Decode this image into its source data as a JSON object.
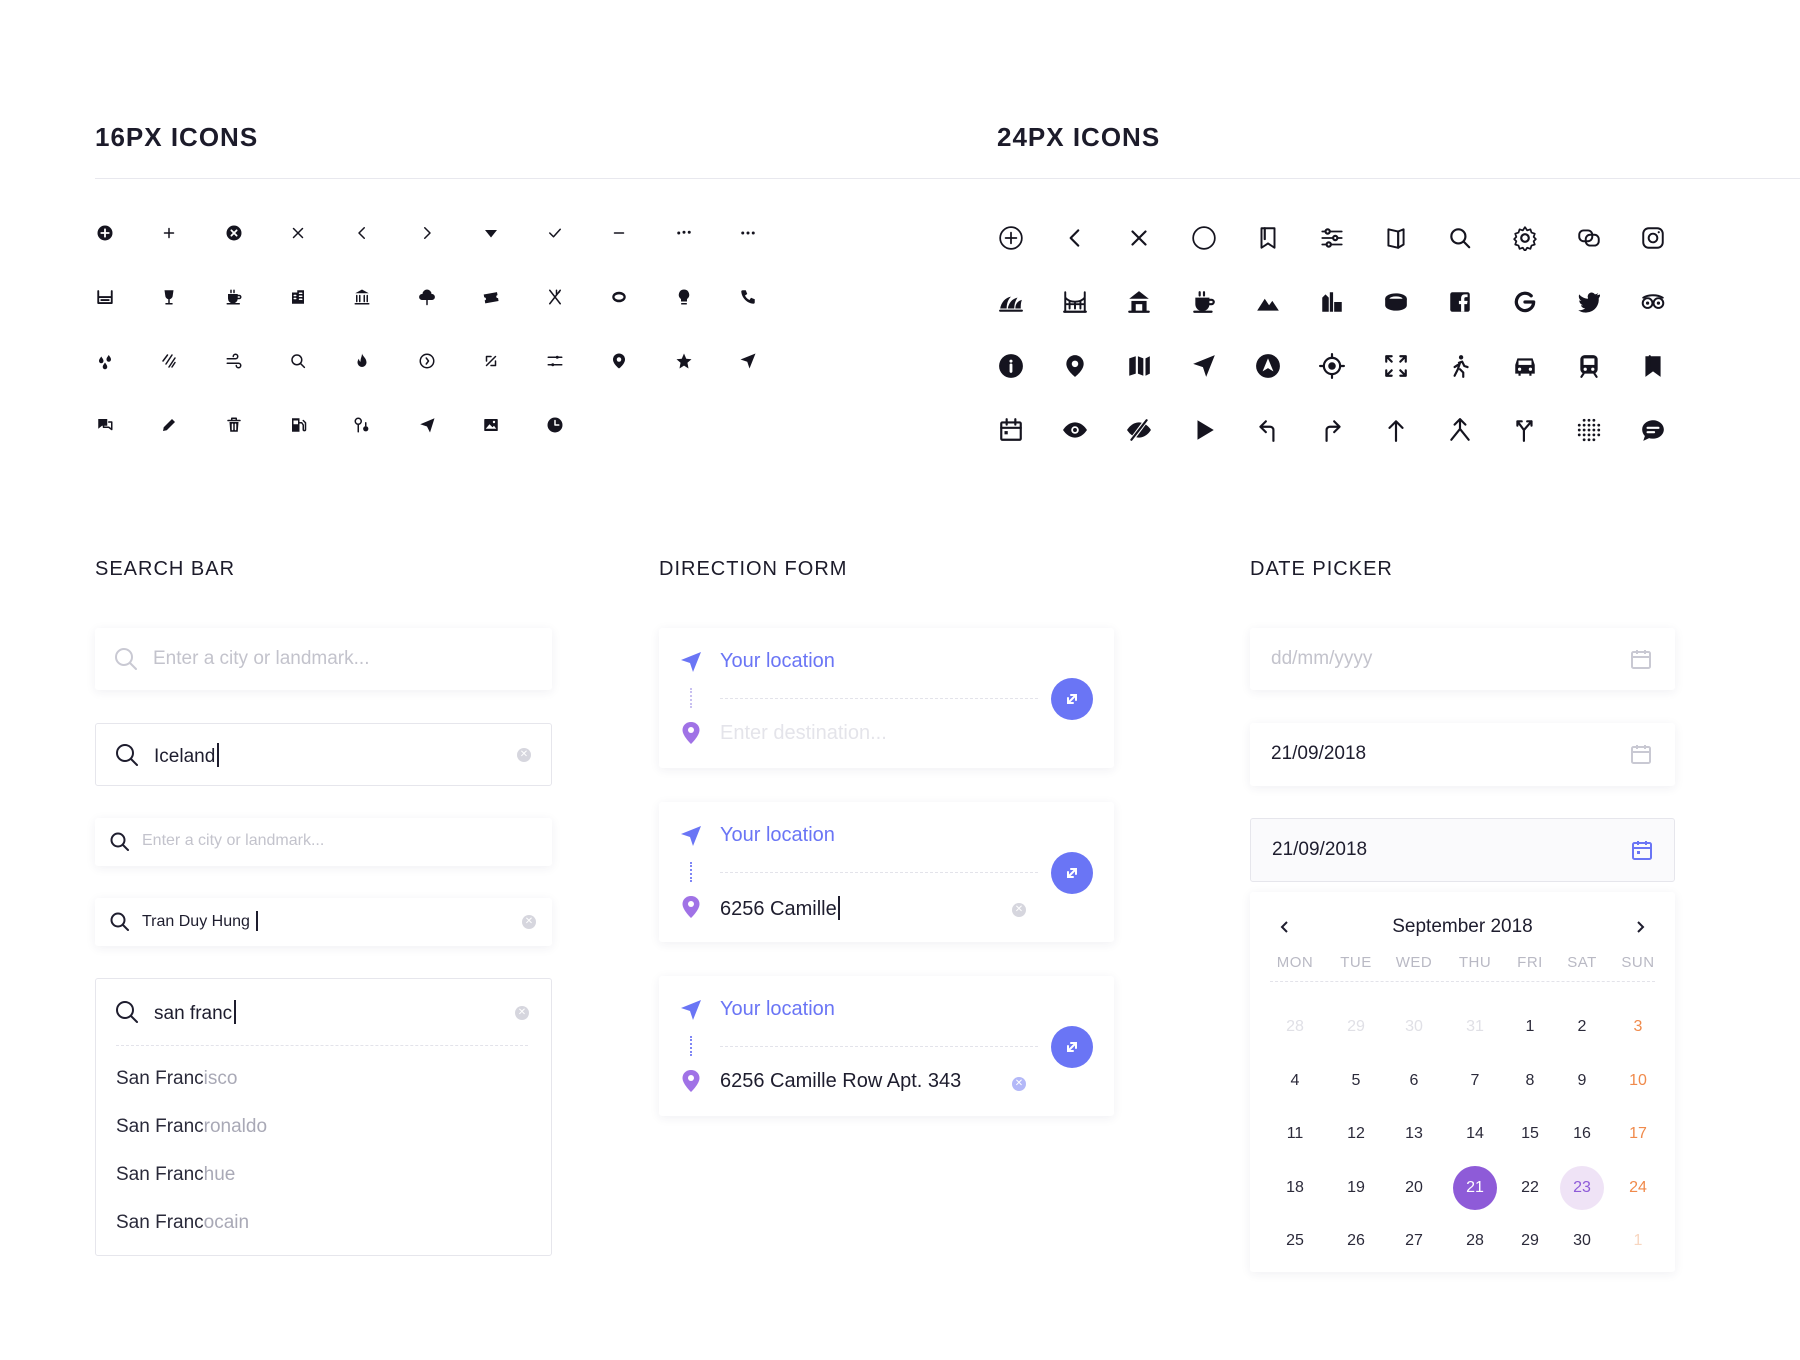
{
  "sections": {
    "icons16_title": "16PX ICONS",
    "icons24_title": "24PX ICONS",
    "search_title": "SEARCH BAR",
    "direction_title": "DIRECTION FORM",
    "date_title": "DATE PICKER"
  },
  "icons16": [
    "add-circle-icon",
    "plus-icon",
    "close-circle-icon",
    "close-icon",
    "chevron-left-icon",
    "chevron-right-icon",
    "caret-down-icon",
    "check-icon",
    "minus-icon",
    "more-horizontal-icon",
    "ellipsis-icon",
    "bath-icon",
    "wine-glass-icon",
    "coffee-cup-icon",
    "building-icon",
    "museum-icon",
    "tree-icon",
    "ticket-icon",
    "restaurant-icon",
    "ring-icon",
    "lightbulb-icon",
    "phone-icon",
    "water-drops-icon",
    "rain-icon",
    "wind-icon",
    "search-icon",
    "fire-icon",
    "clock-icon",
    "directions-icon",
    "filter-icon",
    "location-pin-icon",
    "star-icon",
    "navigate-icon",
    "chat-icon",
    "pencil-icon",
    "trash-icon",
    "gas-station-icon",
    "route-icon",
    "send-icon",
    "image-icon",
    "time-icon"
  ],
  "icons24": [
    "add-circle-outline-icon",
    "chevron-left-icon",
    "close-icon",
    "circle-icon",
    "bookmark-outline-icon",
    "sliders-icon",
    "map-fold-icon",
    "search-icon",
    "settings-icon",
    "link-icon",
    "instagram-icon",
    "sydney-opera-icon",
    "bridge-icon",
    "temple-icon",
    "coffee-cup-icon",
    "mountain-icon",
    "city-icon",
    "stadium-icon",
    "facebook-icon",
    "google-icon",
    "twitter-icon",
    "tripadvisor-icon",
    "info-icon",
    "location-pin-icon",
    "map-icon",
    "navigate-icon",
    "compass-icon",
    "target-icon",
    "fullscreen-icon",
    "walk-icon",
    "car-icon",
    "train-icon",
    "bookmark-icon",
    "calendar-icon",
    "eye-icon",
    "eye-off-icon",
    "play-icon",
    "turn-left-icon",
    "turn-right-icon",
    "arrow-up-icon",
    "merge-icon",
    "fork-icon",
    "dots-grid-icon",
    "message-icon"
  ],
  "search": {
    "placeholder": "Enter a city or landmark...",
    "value_iceland": "Iceland",
    "value_tran": "Tran Duy Hung",
    "value_sanfranc": "san franc",
    "suggestions": [
      {
        "match": "San Franc",
        "rest": "isco"
      },
      {
        "match": "San Franc",
        "rest": "ronaldo"
      },
      {
        "match": "San Franc",
        "rest": "hue"
      },
      {
        "match": "San Franc",
        "rest": "ocain"
      }
    ]
  },
  "direction": {
    "origin": "Your location",
    "dest_placeholder": "Enter destination...",
    "dest_typing": "6256 Camille",
    "dest_full": "6256 Camille Row Apt. 343"
  },
  "datepicker": {
    "placeholder": "dd/mm/yyyy",
    "value": "21/09/2018",
    "month_label": "September 2018",
    "weekdays": [
      "MON",
      "TUE",
      "WED",
      "THU",
      "FRI",
      "SAT",
      "SUN"
    ],
    "weeks": [
      [
        {
          "d": "28",
          "s": "faint"
        },
        {
          "d": "29",
          "s": "faint"
        },
        {
          "d": "30",
          "s": "faint"
        },
        {
          "d": "31",
          "s": "faint"
        },
        {
          "d": "1"
        },
        {
          "d": "2"
        },
        {
          "d": "3",
          "s": "sun"
        }
      ],
      [
        {
          "d": "4"
        },
        {
          "d": "5"
        },
        {
          "d": "6"
        },
        {
          "d": "7"
        },
        {
          "d": "8"
        },
        {
          "d": "9"
        },
        {
          "d": "10",
          "s": "sun"
        }
      ],
      [
        {
          "d": "11"
        },
        {
          "d": "12"
        },
        {
          "d": "13"
        },
        {
          "d": "14"
        },
        {
          "d": "15"
        },
        {
          "d": "16"
        },
        {
          "d": "17",
          "s": "sun"
        }
      ],
      [
        {
          "d": "18"
        },
        {
          "d": "19"
        },
        {
          "d": "20"
        },
        {
          "d": "21",
          "s": "sel"
        },
        {
          "d": "22"
        },
        {
          "d": "23",
          "s": "range"
        },
        {
          "d": "24",
          "s": "sun"
        }
      ],
      [
        {
          "d": "25"
        },
        {
          "d": "26"
        },
        {
          "d": "27"
        },
        {
          "d": "28"
        },
        {
          "d": "29"
        },
        {
          "d": "30"
        },
        {
          "d": "1",
          "s": "sunfaint"
        }
      ]
    ]
  },
  "colors": {
    "accent": "#6a75f5",
    "purple": "#8e5bd8",
    "weekend": "#f08a4b",
    "text": "#1e1d2e"
  }
}
